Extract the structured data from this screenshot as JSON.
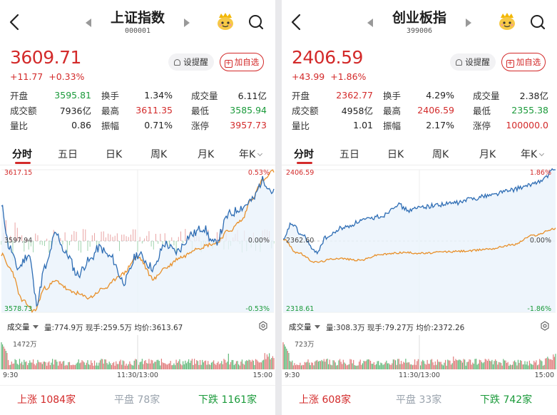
{
  "panels": [
    {
      "name": "上证指数",
      "code": "000001",
      "price": "3609.71",
      "change": "+11.77",
      "change_pct": "+0.33%",
      "remind_label": "设提醒",
      "add_label": "加自选",
      "stats": [
        [
          {
            "label": "开盘",
            "value": "3595.81",
            "color": "green"
          },
          {
            "label": "换手",
            "value": "1.34%",
            "color": "dark"
          },
          {
            "label": "成交量",
            "value": "6.11亿",
            "color": "dark"
          }
        ],
        [
          {
            "label": "成交额",
            "value": "7936亿",
            "color": "dark"
          },
          {
            "label": "最高",
            "value": "3611.35",
            "color": "red"
          },
          {
            "label": "最低",
            "value": "3585.94",
            "color": "green"
          }
        ],
        [
          {
            "label": "量比",
            "value": "0.86",
            "color": "dark"
          },
          {
            "label": "振幅",
            "value": "0.71%",
            "color": "dark"
          },
          {
            "label": "涨停",
            "value": "3957.73",
            "color": "red"
          }
        ]
      ],
      "tabs": [
        "分时",
        "五日",
        "日K",
        "周K",
        "月K",
        "年K"
      ],
      "chart": {
        "top_price": "3617.15",
        "mid_price": "3597.94",
        "bottom_price": "3578.73",
        "top_pct": "0.53%",
        "mid_pct": "0.00%",
        "bottom_pct": "-0.53%"
      },
      "volume": {
        "selector_label": "成交量",
        "info": "量:774.9万 现手:259.5万 均价:3613.67",
        "max_label": "1472万"
      },
      "time_labels": [
        "9:30",
        "11:30/13:00",
        "15:00"
      ],
      "breadth": {
        "up_label": "上涨",
        "up_count": "1084家",
        "flat_label": "平盘",
        "flat_count": "78家",
        "down_label": "下跌",
        "down_count": "1161家"
      }
    },
    {
      "name": "创业板指",
      "code": "399006",
      "price": "2406.59",
      "change": "+43.99",
      "change_pct": "+1.86%",
      "remind_label": "设提醒",
      "add_label": "加自选",
      "stats": [
        [
          {
            "label": "开盘",
            "value": "2362.77",
            "color": "red"
          },
          {
            "label": "换手",
            "value": "4.29%",
            "color": "dark"
          },
          {
            "label": "成交量",
            "value": "2.38亿",
            "color": "dark"
          }
        ],
        [
          {
            "label": "成交额",
            "value": "4958亿",
            "color": "dark"
          },
          {
            "label": "最高",
            "value": "2406.59",
            "color": "red"
          },
          {
            "label": "最低",
            "value": "2355.38",
            "color": "green"
          }
        ],
        [
          {
            "label": "量比",
            "value": "1.01",
            "color": "dark"
          },
          {
            "label": "振幅",
            "value": "2.17%",
            "color": "dark"
          },
          {
            "label": "涨停",
            "value": "100000.0",
            "color": "red"
          }
        ]
      ],
      "tabs": [
        "分时",
        "五日",
        "日K",
        "周K",
        "月K",
        "年K"
      ],
      "chart": {
        "top_price": "2406.59",
        "mid_price": "2362.60",
        "bottom_price": "2318.61",
        "top_pct": "1.86%",
        "mid_pct": "0.00%",
        "bottom_pct": "-1.86%"
      },
      "volume": {
        "selector_label": "成交量",
        "info": "量:308.3万 现手:79.27万 均价:2372.26",
        "max_label": "723万"
      },
      "time_labels": [
        "9:30",
        "11:30/13:00",
        "15:00"
      ],
      "breadth": {
        "up_label": "上涨",
        "up_count": "608家",
        "flat_label": "平盘",
        "flat_count": "33家",
        "down_label": "下跌",
        "down_count": "742家"
      }
    }
  ],
  "colors": {
    "up": "#d32a2a",
    "down": "#1a9a3a",
    "flat": "#9aa3ad",
    "price_line": "#2e6db4",
    "avg_line": "#e8902a"
  }
}
